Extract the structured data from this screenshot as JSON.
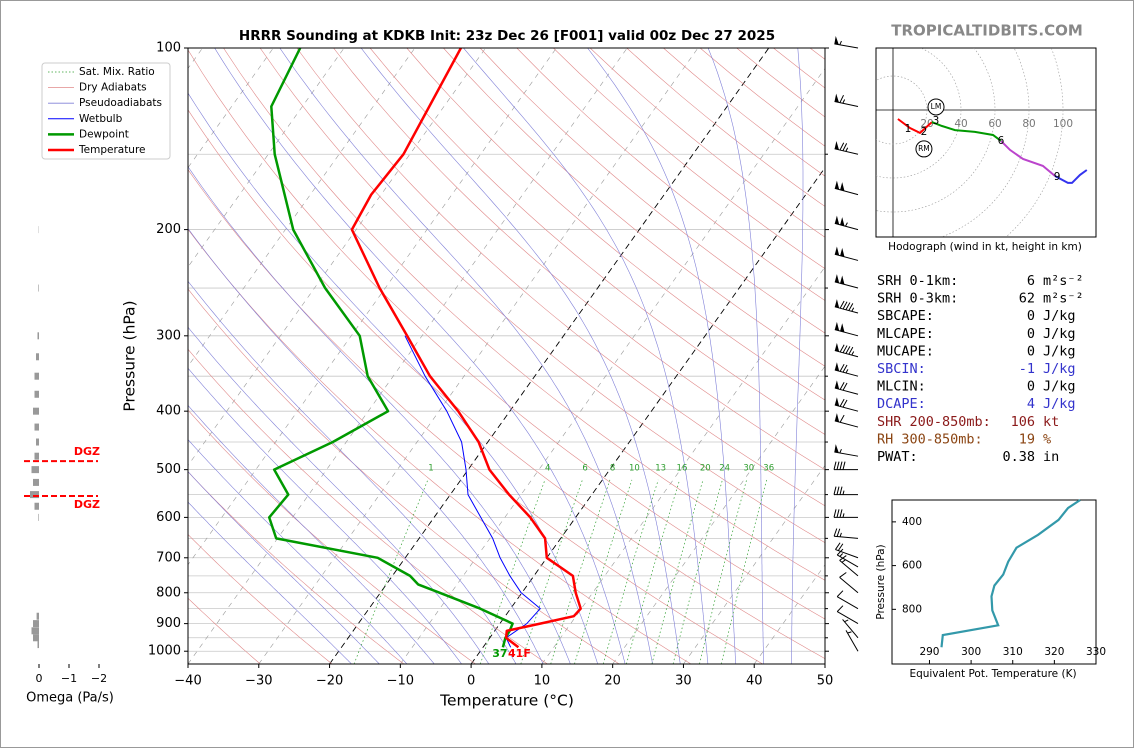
{
  "chart_data": [
    {
      "type": "skewt",
      "title": "HRRR Sounding at KDKB Init: 23z Dec 26 [F001] valid 00z Dec 27 2025",
      "x_label": "Temperature (°C)",
      "y_label": "Pressure (hPa)",
      "xlim": [
        -40,
        50
      ],
      "ylim": [
        1050,
        100
      ],
      "xticks": [
        {
          "value": -40,
          "label": "−40"
        },
        {
          "value": -30,
          "label": "−30"
        },
        {
          "value": -20,
          "label": "−20"
        },
        {
          "value": -10,
          "label": "−10"
        },
        0,
        10,
        20,
        30,
        40,
        50
      ],
      "yticks": [
        100,
        200,
        300,
        400,
        500,
        600,
        700,
        800,
        900,
        1000
      ],
      "yminor": [
        150,
        250,
        350,
        450,
        550,
        650,
        750,
        850,
        950
      ],
      "highlight_isotherms": [
        -20,
        0
      ],
      "mixing_ratio_labels": [
        1,
        4,
        6,
        8,
        10,
        13,
        16,
        20,
        24,
        30,
        36
      ],
      "background": [
        {
          "name": "Sat. Mix. Ratio",
          "color": "#2e9e2e"
        },
        {
          "name": "Dry Adiabats",
          "color": "#e08a8a"
        },
        {
          "name": "Pseudoadiabats",
          "color": "#8080d8"
        }
      ],
      "series": [
        {
          "name": "Wetbulb",
          "color": "#0000ff",
          "linewidth": 1,
          "p": [
            985,
            950,
            900,
            850,
            800,
            750,
            700,
            650,
            600,
            550,
            500,
            450,
            400,
            350,
            300
          ],
          "values": [
            3.9,
            2.3,
            3.8,
            4.2,
            -0.1,
            -3.4,
            -6.6,
            -9.6,
            -13.4,
            -17.5,
            -20.3,
            -23.7,
            -28.9,
            -35.5,
            -42.4
          ]
        },
        {
          "name": "Dewpoint",
          "color": "#009900",
          "linewidth": 2.5,
          "p": [
            985,
            950,
            925,
            900,
            875,
            850,
            800,
            775,
            750,
            700,
            650,
            600,
            550,
            500,
            450,
            400,
            350,
            300,
            250,
            200,
            150,
            125,
            100
          ],
          "values": [
            2.8,
            2.2,
            2.1,
            1.8,
            -1.2,
            -4.3,
            -11.6,
            -15.5,
            -17.5,
            -23.9,
            -40.2,
            -43.3,
            -42.9,
            -47.4,
            -41.9,
            -37.2,
            -43.6,
            -48.8,
            -58.5,
            -68.9,
            -79.1,
            -84.4,
            -86.2
          ]
        },
        {
          "name": "Temperature",
          "color": "#ff0000",
          "linewidth": 2.5,
          "p": [
            985,
            950,
            925,
            900,
            875,
            850,
            800,
            750,
            700,
            650,
            600,
            550,
            500,
            450,
            400,
            350,
            300,
            250,
            200,
            175,
            150,
            100
          ],
          "values": [
            5,
            2.3,
            1.7,
            5.7,
            9.7,
            9.9,
            7.6,
            5.5,
            0,
            -2.2,
            -6.4,
            -11.7,
            -17,
            -21.3,
            -27.3,
            -34.8,
            -42.1,
            -50.8,
            -60.6,
            -61.4,
            -60.9,
            -63.5
          ]
        }
      ],
      "surface_dewpoint_f": 37,
      "surface_temp_f": {
        "value": 41,
        "label": "41F"
      },
      "winds": {
        "p": [
          100,
          125,
          150,
          175,
          200,
          225,
          250,
          275,
          300,
          325,
          350,
          375,
          400,
          425,
          475,
          500,
          550,
          600,
          650,
          700,
          725,
          750,
          800,
          850,
          900,
          950,
          1000
        ],
        "speed": [
          55,
          65,
          75,
          100,
          105,
          100,
          100,
          95,
          100,
          95,
          75,
          70,
          70,
          60,
          55,
          40,
          35,
          35,
          25,
          20,
          15,
          15,
          10,
          10,
          10,
          5,
          5
        ],
        "direction": [
          280,
          282,
          283,
          285,
          285,
          285,
          285,
          285,
          285,
          285,
          285,
          285,
          285,
          285,
          280,
          270,
          270,
          270,
          275,
          290,
          300,
          310,
          310,
          300,
          300,
          320,
          330
        ]
      }
    },
    {
      "type": "omega",
      "x_label": "Omega (Pa/s)",
      "color": "#999999",
      "xlim": [
        0.55,
        -2.2
      ],
      "ylim": [
        1050,
        100
      ],
      "xticks": [
        0,
        {
          "value": -1,
          "label": "−1"
        },
        {
          "value": -2,
          "label": "−2"
        }
      ],
      "p": [
        975,
        950,
        925,
        900,
        875,
        600,
        575,
        550,
        525,
        500,
        475,
        450,
        425,
        400,
        375,
        350,
        325,
        300,
        250,
        200
      ],
      "values": [
        0.05,
        0.2,
        0.25,
        0.2,
        0.08,
        0.02,
        0.15,
        0.3,
        0.2,
        0.25,
        0.15,
        0.1,
        0.15,
        0.2,
        0.15,
        0.15,
        0.1,
        0.05,
        0.02,
        0.01
      ],
      "dgz": [
        {
          "label": "DGZ",
          "p": 484,
          "color": "#ff0000"
        },
        {
          "label": "DGZ",
          "p": 553,
          "color": "#ff0000"
        }
      ]
    },
    {
      "type": "hodograph",
      "caption": "Hodograph (wind in kt, height in km)",
      "rings": [
        20,
        40,
        60,
        80,
        100
      ],
      "series": [
        {
          "color": "#ff0000",
          "u": [
            2.9,
            10,
            15.9,
            22.9
          ],
          "v": [
            -5.3,
            -10.6,
            -13.5,
            -7.1
          ]
        },
        {
          "color": "#009900",
          "u": [
            22.9,
            28.8,
            36.5,
            48.2,
            58.8,
            63.5
          ],
          "v": [
            -7.1,
            -9.4,
            -11.8,
            -12.9,
            -14.7,
            -18.2
          ]
        },
        {
          "color": "#bb44cc",
          "u": [
            63.5,
            68.8,
            76.5,
            88.2,
            95.3
          ],
          "v": [
            -18.2,
            -23.5,
            -28.8,
            -32.9,
            -38.8
          ]
        },
        {
          "color": "#3333ee",
          "u": [
            95.3,
            102.9,
            105.3,
            110,
            114
          ],
          "v": [
            -38.8,
            -42.9,
            -42.9,
            -38.2,
            -35.3
          ]
        }
      ],
      "height_labels": [
        {
          "label": "1",
          "u": 8.8,
          "v": -11.2
        },
        {
          "label": "2",
          "u": 18.2,
          "v": -12.9
        },
        {
          "label": "3",
          "u": 25.3,
          "v": -6.5
        },
        {
          "label": "6",
          "u": 63.5,
          "v": -18.2
        },
        {
          "label": "9",
          "u": 96.5,
          "v": -39.4
        }
      ],
      "storm_motion": [
        {
          "label": "LM",
          "u": 25.3,
          "v": 1.8
        },
        {
          "label": "RM",
          "u": 18.2,
          "v": -22.9
        }
      ]
    },
    {
      "type": "line",
      "x_label": "Equivalent Pot. Temperature (K)",
      "y_label": "Pressure (hPa)",
      "color": "#3399aa",
      "xlim": [
        281,
        330
      ],
      "ylim": [
        1050,
        300
      ],
      "xticks": [
        290,
        300,
        310,
        320,
        330
      ],
      "yticks": [
        400,
        600,
        800
      ],
      "x": [
        292.9,
        293.2,
        306.5,
        305.1,
        304.9,
        305.6,
        307.7,
        308.9,
        310.9,
        316.1,
        321.0,
        323.3,
        326.2
      ],
      "y": [
        973,
        918,
        873,
        805,
        741,
        691,
        641,
        582,
        518,
        459,
        391,
        336,
        300
      ]
    }
  ],
  "brand": "TROPICALTIDBITS.COM",
  "stats": [
    {
      "label": "SRH 0-1km:",
      "value": 6,
      "unit": "m²s⁻²",
      "color": "#000000"
    },
    {
      "label": "SRH 0-3km:",
      "value": 62,
      "unit": "m²s⁻²",
      "color": "#000000"
    },
    {
      "label": "SBCAPE:",
      "value": 0,
      "unit": "J/kg",
      "color": "#000000"
    },
    {
      "label": "MLCAPE:",
      "value": 0,
      "unit": "J/kg",
      "color": "#000000"
    },
    {
      "label": "MUCAPE:",
      "value": 0,
      "unit": "J/kg",
      "color": "#000000"
    },
    {
      "label": "SBCIN:",
      "value": -1,
      "unit": "J/kg",
      "color": "#3333cc"
    },
    {
      "label": "MLCIN:",
      "value": 0,
      "unit": "J/kg",
      "color": "#000000"
    },
    {
      "label": "DCAPE:",
      "value": 4,
      "unit": "J/kg",
      "color": "#3333cc"
    },
    {
      "label": "SHR 200-850mb:",
      "value": 106,
      "unit": "kt",
      "color": "#8b1a1a"
    },
    {
      "label": "RH 300-850mb:",
      "value": 19,
      "unit": "%",
      "color": "#8b4513"
    },
    {
      "label": "PWAT:",
      "value": 0.38,
      "unit": "in",
      "color": "#000000"
    }
  ]
}
